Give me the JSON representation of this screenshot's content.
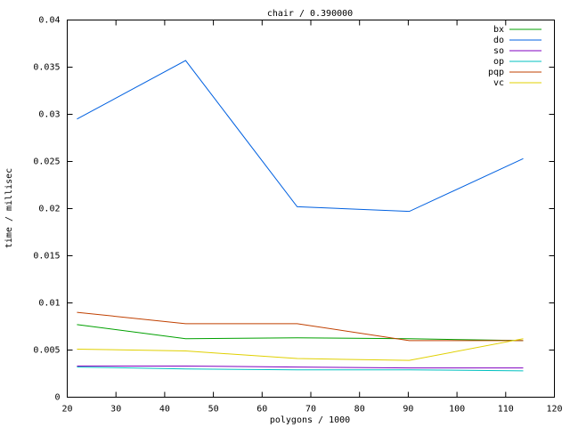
{
  "chart_data": {
    "type": "line",
    "title": "chair / 0.390000",
    "x_label": "polygons / 1000",
    "y_label": "time / millisec",
    "x": [
      22,
      44.3,
      67.2,
      90.2,
      113.6
    ],
    "series": [
      {
        "name": "bx",
        "color": "#00a000",
        "values": [
          0.0077,
          0.0062,
          0.0063,
          0.0062,
          0.006
        ]
      },
      {
        "name": "do",
        "color": "#0060e0",
        "values": [
          0.0295,
          0.0357,
          0.0202,
          0.0197,
          0.0253
        ]
      },
      {
        "name": "so",
        "color": "#8000c0",
        "values": [
          0.0033,
          0.0033,
          0.0032,
          0.0031,
          0.0031
        ]
      },
      {
        "name": "op",
        "color": "#00c0c0",
        "values": [
          0.0032,
          0.003,
          0.0029,
          0.0029,
          0.0028
        ]
      },
      {
        "name": "pqp",
        "color": "#c04000",
        "values": [
          0.009,
          0.0078,
          0.0078,
          0.006,
          0.006
        ]
      },
      {
        "name": "vc",
        "color": "#e0d000",
        "values": [
          0.0051,
          0.0049,
          0.0041,
          0.0039,
          0.0062
        ]
      }
    ],
    "xlim": [
      20,
      120
    ],
    "xticks": [
      20,
      30,
      40,
      50,
      60,
      70,
      80,
      90,
      100,
      110,
      120
    ],
    "ylim": [
      0,
      0.04
    ],
    "yticks": [
      0,
      0.005,
      0.01,
      0.015,
      0.02,
      0.025,
      0.03,
      0.035,
      0.04
    ],
    "legend": "top-right"
  }
}
